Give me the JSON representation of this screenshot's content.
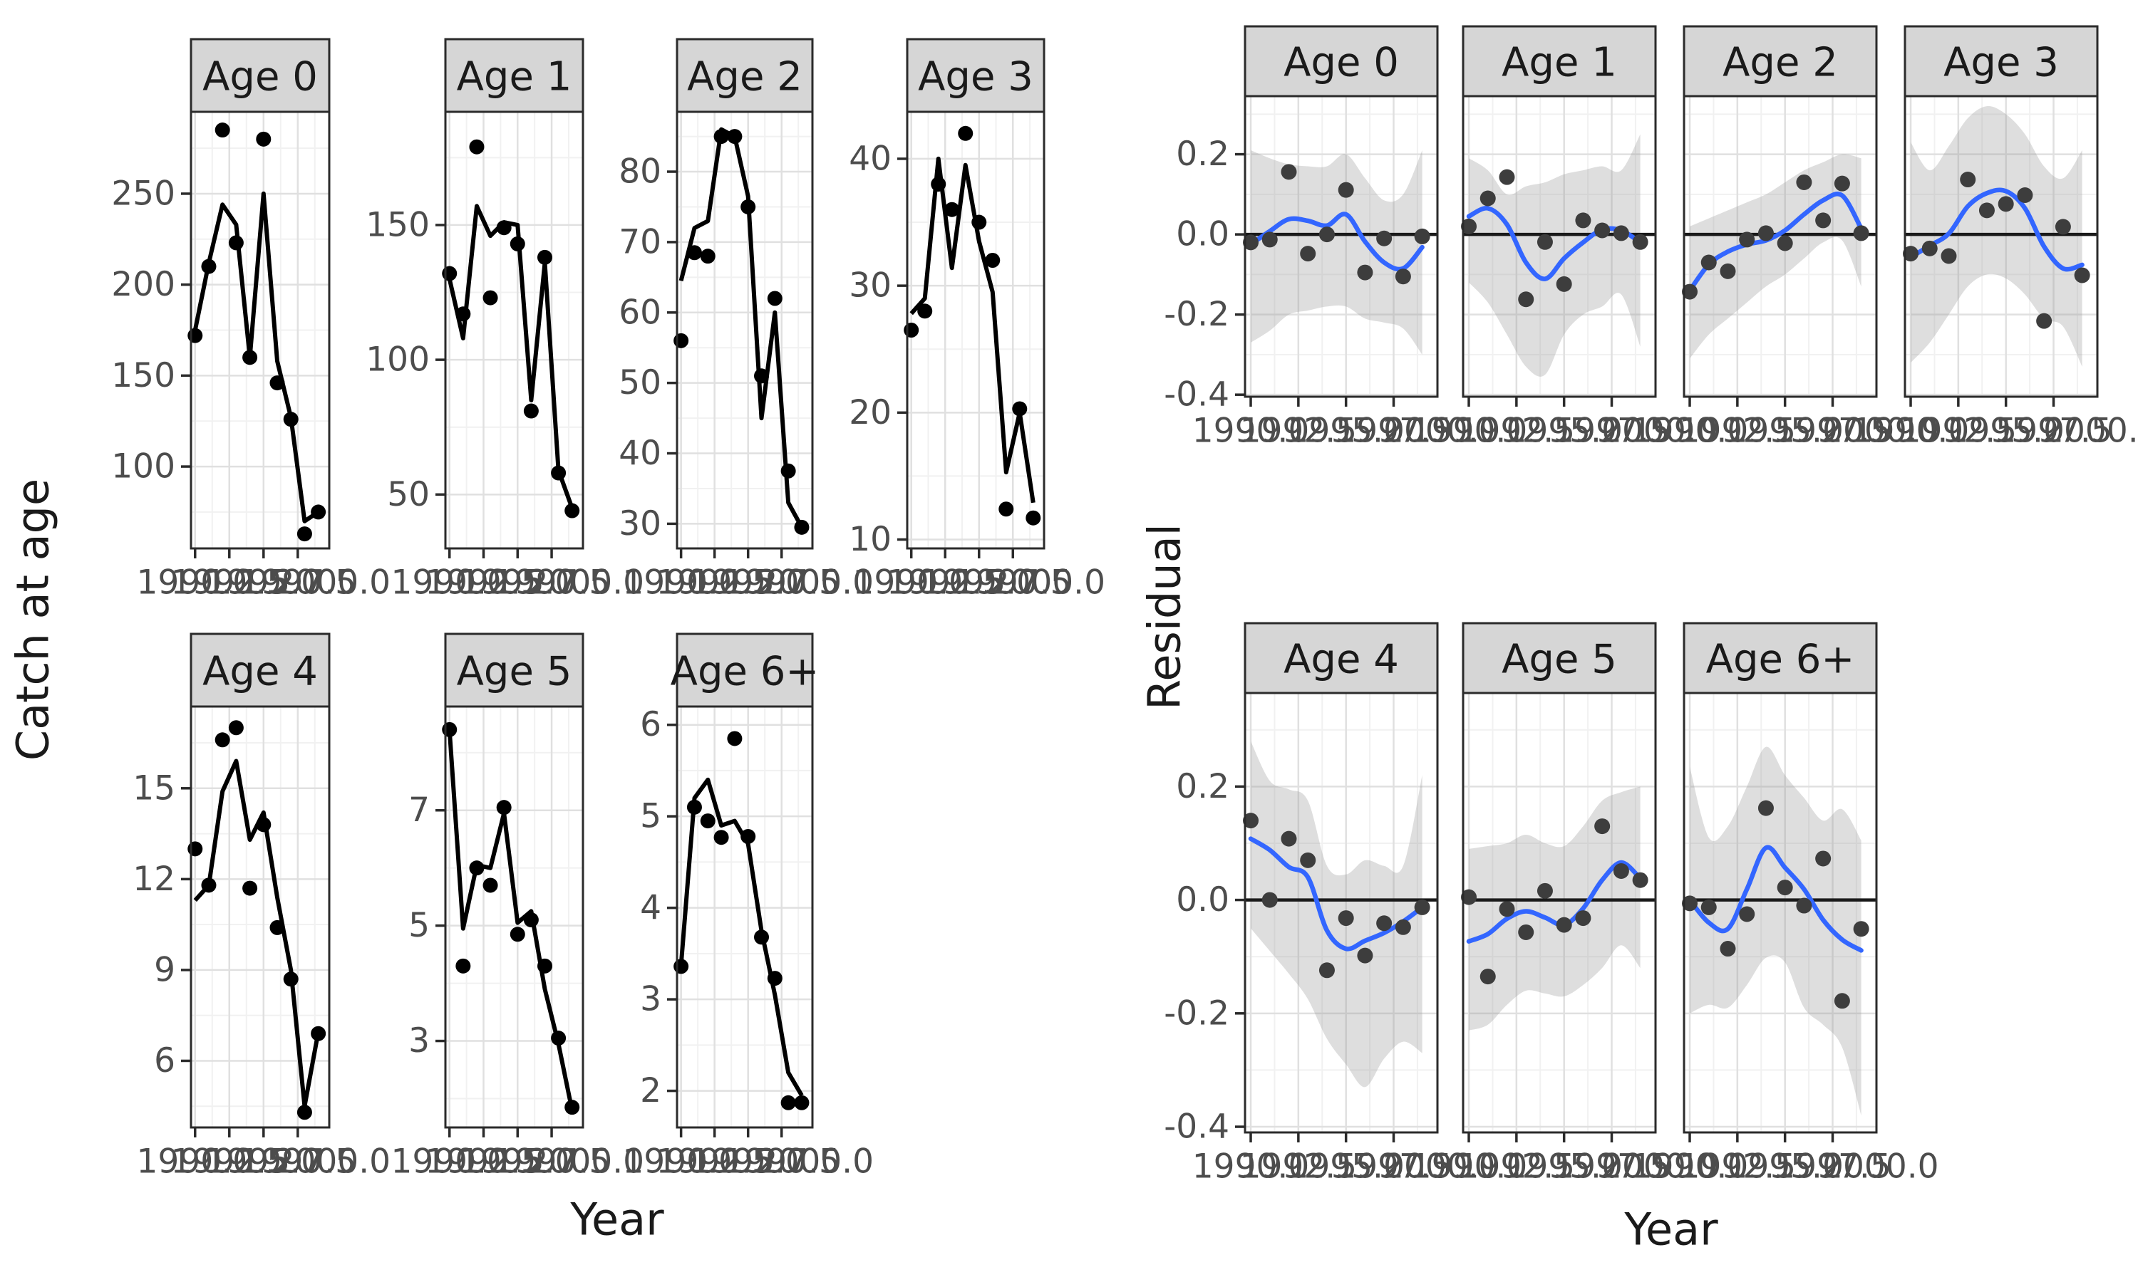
{
  "chart_data": [
    {
      "id": "catch_at_age",
      "type": "line",
      "ylabel": "Catch at age",
      "xlabel": "Year",
      "x": [
        1990,
        1991,
        1992,
        1993,
        1994,
        1995,
        1996,
        1997,
        1998,
        1999
      ],
      "x_breaks": [
        1990,
        1992.5,
        1995,
        1997.5,
        2000
      ],
      "x_tick_labels": [
        "1990.0",
        "1992.5",
        "1995.0",
        "1997.5",
        "2000.0"
      ],
      "legend": "none",
      "grid": true,
      "facets": [
        {
          "label": "Age 0",
          "y_ticks": [
            250,
            200,
            150,
            100
          ],
          "ylim": [
            55,
            295
          ],
          "observed": [
            172,
            210,
            285,
            223,
            160,
            280,
            146,
            126,
            63,
            75
          ],
          "fitted": [
            175,
            212,
            244,
            233,
            160,
            250,
            158,
            127,
            70,
            75
          ]
        },
        {
          "label": "Age 1",
          "y_ticks": [
            150,
            100,
            50
          ],
          "ylim": [
            30,
            192
          ],
          "observed": [
            132,
            117,
            179,
            123,
            149,
            143,
            81,
            138,
            58,
            44
          ],
          "fitted": [
            130,
            108,
            157,
            146,
            151,
            150,
            85,
            136,
            59,
            45
          ]
        },
        {
          "label": "Age 2",
          "y_ticks": [
            80,
            70,
            60,
            50,
            40,
            30
          ],
          "ylim": [
            26.5,
            88.5
          ],
          "observed": [
            56,
            68.5,
            68,
            85,
            85,
            75,
            51,
            62,
            37.5,
            29.5
          ],
          "fitted": [
            64.5,
            72,
            73,
            86,
            85,
            76.5,
            45,
            60,
            33,
            29.5
          ]
        },
        {
          "label": "Age 3",
          "y_ticks": [
            40,
            30,
            20,
            10
          ],
          "ylim": [
            9.3,
            43.7
          ],
          "observed": [
            26.5,
            28,
            38,
            36,
            42,
            35,
            32,
            12.4,
            20.3,
            11.7
          ],
          "fitted": [
            27.8,
            29,
            40,
            31.4,
            39.5,
            33.5,
            29.5,
            15.3,
            20,
            12.9
          ]
        },
        {
          "label": "Age 4",
          "y_ticks": [
            15,
            12,
            9,
            6
          ],
          "ylim": [
            3.8,
            17.7
          ],
          "observed": [
            13,
            11.8,
            16.6,
            17,
            11.7,
            13.8,
            10.4,
            8.7,
            4.3,
            6.9
          ],
          "fitted": [
            11.3,
            11.8,
            14.9,
            15.9,
            13.3,
            14.2,
            11.4,
            9,
            4.5,
            6.95
          ]
        },
        {
          "label": "Age 5",
          "y_ticks": [
            7,
            5,
            3
          ],
          "ylim": [
            1.5,
            8.8
          ],
          "observed": [
            8.4,
            4.3,
            6,
            5.7,
            7.05,
            4.85,
            5.1,
            4.3,
            3.05,
            1.85
          ],
          "fitted": [
            8.4,
            4.95,
            6.05,
            6,
            6.95,
            5.05,
            5.25,
            3.9,
            2.95,
            1.8
          ]
        },
        {
          "label": "Age 6+",
          "y_ticks": [
            6,
            5,
            4,
            3,
            2
          ],
          "ylim": [
            1.6,
            6.2
          ],
          "observed": [
            3.36,
            5.1,
            4.95,
            4.77,
            5.85,
            4.78,
            3.68,
            3.23,
            1.87,
            1.87
          ],
          "fitted": [
            3.37,
            5.2,
            5.4,
            4.9,
            4.95,
            4.7,
            3.75,
            3.05,
            2.2,
            1.95
          ]
        }
      ]
    },
    {
      "id": "residuals",
      "type": "line",
      "ylabel": "Residual",
      "xlabel": "Year",
      "x": [
        1990,
        1991,
        1992,
        1993,
        1994,
        1995,
        1996,
        1997,
        1998,
        1999
      ],
      "x_breaks": [
        1990,
        1992.5,
        1995,
        1997.5,
        2000
      ],
      "x_tick_labels": [
        "1990.0",
        "1992.5",
        "1995.0",
        "1997.5",
        "2000.0"
      ],
      "y_ticks": [
        0.2,
        0.0,
        -0.2,
        -0.4
      ],
      "y_tick_labels": [
        "0.2",
        "0.0",
        "-0.2",
        "-0.4"
      ],
      "zero_line": 0,
      "legend": "none",
      "grid": true,
      "facets": [
        {
          "label": "Age 0",
          "residuals": [
            -0.02,
            -0.013,
            0.156,
            -0.048,
            0.0,
            0.111,
            -0.095,
            -0.01,
            -0.105,
            -0.005
          ],
          "smooth": [
            -0.025,
            0.008,
            0.038,
            0.034,
            0.022,
            0.05,
            -0.018,
            -0.07,
            -0.085,
            -0.032
          ],
          "ribbon_upper": [
            0.21,
            0.19,
            0.175,
            0.17,
            0.17,
            0.2,
            0.14,
            0.085,
            0.1,
            0.21
          ],
          "ribbon_lower": [
            -0.27,
            -0.24,
            -0.2,
            -0.19,
            -0.18,
            -0.18,
            -0.21,
            -0.22,
            -0.235,
            -0.3
          ]
        },
        {
          "label": "Age 1",
          "residuals": [
            0.02,
            0.09,
            0.143,
            -0.162,
            -0.019,
            -0.124,
            0.035,
            0.01,
            0.003,
            -0.019
          ],
          "smooth": [
            0.045,
            0.065,
            0.025,
            -0.07,
            -0.111,
            -0.06,
            -0.02,
            0.012,
            0.01,
            -0.02
          ],
          "ribbon_upper": [
            0.19,
            0.16,
            0.1,
            0.12,
            0.13,
            0.15,
            0.16,
            0.17,
            0.16,
            0.25
          ],
          "ribbon_lower": [
            -0.12,
            -0.17,
            -0.25,
            -0.33,
            -0.35,
            -0.25,
            -0.2,
            -0.18,
            -0.15,
            -0.28
          ]
        },
        {
          "label": "Age 2",
          "residuals": [
            -0.143,
            -0.07,
            -0.092,
            -0.013,
            0.003,
            -0.022,
            0.13,
            0.035,
            0.127,
            0.003
          ],
          "smooth": [
            -0.14,
            -0.075,
            -0.043,
            -0.025,
            -0.015,
            0.01,
            0.05,
            0.085,
            0.097,
            0.015
          ],
          "ribbon_upper": [
            0.02,
            0.04,
            0.06,
            0.08,
            0.1,
            0.13,
            0.16,
            0.18,
            0.2,
            0.19
          ],
          "ribbon_lower": [
            -0.31,
            -0.25,
            -0.21,
            -0.17,
            -0.13,
            -0.1,
            -0.06,
            -0.02,
            -0.015,
            -0.13
          ]
        },
        {
          "label": "Age 3",
          "residuals": [
            -0.048,
            -0.035,
            -0.054,
            0.137,
            0.06,
            0.076,
            0.098,
            -0.216,
            0.019,
            -0.102
          ],
          "smooth": [
            -0.057,
            -0.028,
            0.002,
            0.07,
            0.103,
            0.108,
            0.065,
            -0.03,
            -0.085,
            -0.076
          ],
          "ribbon_upper": [
            0.23,
            0.16,
            0.22,
            0.29,
            0.32,
            0.3,
            0.25,
            0.17,
            0.14,
            0.21
          ],
          "ribbon_lower": [
            -0.32,
            -0.27,
            -0.2,
            -0.13,
            -0.1,
            -0.11,
            -0.15,
            -0.21,
            -0.23,
            -0.33
          ]
        },
        {
          "label": "Age 4",
          "residuals": [
            0.14,
            0.0,
            0.108,
            0.07,
            -0.124,
            -0.032,
            -0.098,
            -0.041,
            -0.048,
            -0.013
          ],
          "smooth": [
            0.108,
            0.088,
            0.058,
            0.04,
            -0.054,
            -0.086,
            -0.072,
            -0.058,
            -0.038,
            -0.013
          ],
          "ribbon_upper": [
            0.28,
            0.21,
            0.195,
            0.175,
            0.06,
            0.045,
            0.07,
            0.06,
            0.06,
            0.22
          ],
          "ribbon_lower": [
            -0.05,
            -0.09,
            -0.13,
            -0.175,
            -0.245,
            -0.29,
            -0.33,
            -0.28,
            -0.25,
            -0.27
          ]
        },
        {
          "label": "Age 5",
          "residuals": [
            0.005,
            -0.135,
            -0.016,
            -0.057,
            0.016,
            -0.044,
            -0.032,
            0.13,
            0.051,
            0.035
          ],
          "smooth": [
            -0.073,
            -0.06,
            -0.033,
            -0.02,
            -0.031,
            -0.044,
            -0.015,
            0.035,
            0.066,
            0.038
          ],
          "ribbon_upper": [
            0.09,
            0.095,
            0.1,
            0.115,
            0.1,
            0.095,
            0.13,
            0.175,
            0.19,
            0.2
          ],
          "ribbon_lower": [
            -0.23,
            -0.22,
            -0.185,
            -0.16,
            -0.165,
            -0.17,
            -0.15,
            -0.12,
            -0.08,
            -0.12
          ]
        },
        {
          "label": "Age 6+",
          "residuals": [
            -0.006,
            -0.013,
            -0.086,
            -0.025,
            0.162,
            0.022,
            -0.01,
            0.073,
            -0.178,
            -0.051
          ],
          "smooth": [
            0.0,
            -0.04,
            -0.051,
            0.019,
            0.092,
            0.057,
            0.019,
            -0.035,
            -0.07,
            -0.089
          ],
          "ribbon_upper": [
            0.235,
            0.11,
            0.13,
            0.2,
            0.27,
            0.22,
            0.18,
            0.14,
            0.16,
            0.105
          ],
          "ribbon_lower": [
            -0.2,
            -0.185,
            -0.19,
            -0.15,
            -0.102,
            -0.11,
            -0.19,
            -0.22,
            -0.26,
            -0.38
          ]
        }
      ]
    }
  ],
  "colors": {
    "fit_line": "#000000",
    "observed_point": "#000000",
    "residual_point": "#3d3d3d",
    "smooth_line": "#3366FF",
    "ribbon": "#999999",
    "zero_line": "#1a1a1a",
    "strip_fill": "#d6d6d6",
    "strip_border": "#2b2b2b",
    "panel_border": "#2b2b2b",
    "grid_major": "#e0e0e0",
    "grid_minor": "#f1f1f1",
    "tick_label": "#4d4d4d",
    "title": "#1a1a1a"
  }
}
